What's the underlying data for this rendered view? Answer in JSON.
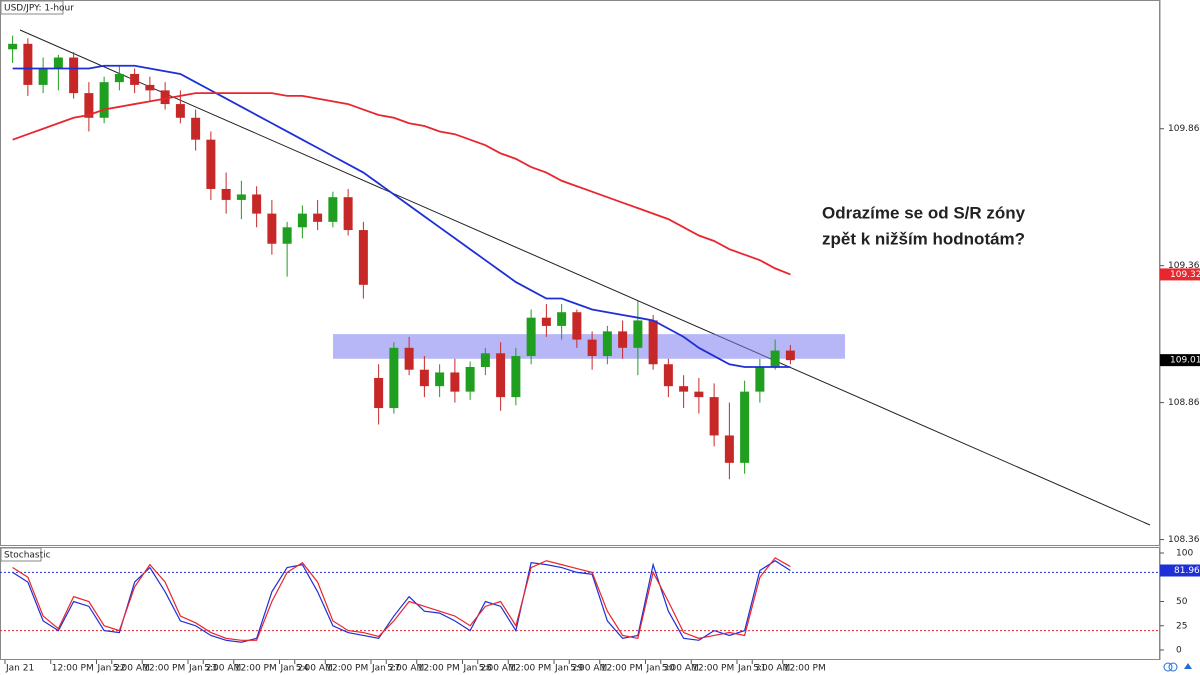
{
  "chart_data": [
    {
      "type": "candlestick",
      "title": "USD/JPY: 1-hour",
      "categories": [
        "Jan 21",
        null,
        null,
        "12:00 PM",
        null,
        null,
        "Jan 22",
        "5:00 AM",
        null,
        "12:00 PM",
        null,
        null,
        "Jan 23",
        "5:00 AM",
        null,
        "12:00 PM",
        null,
        null,
        "Jan 24",
        "5:00 AM",
        null,
        "12:00 PM",
        null,
        null,
        "Jan 27",
        "5:00 AM",
        null,
        "12:00 PM",
        null,
        null,
        "Jan 28",
        "5:00 AM",
        null,
        "12:00 PM",
        null,
        null,
        "Jan 29",
        "5:00 AM",
        null,
        "12:00 PM",
        null,
        null,
        "Jan 30",
        "5:00 AM",
        null,
        "12:00 PM",
        null,
        null,
        "Jan 31",
        "5:00 AM",
        null,
        "12:00 PM"
      ],
      "open": [
        110.15,
        110.17,
        110.02,
        110.08,
        110.12,
        109.99,
        109.9,
        110.03,
        110.06,
        110.02,
        110.0,
        109.95,
        109.9,
        109.82,
        109.64,
        109.6,
        109.62,
        109.55,
        109.44,
        109.5,
        109.55,
        109.52,
        109.61,
        109.49,
        108.95,
        108.84,
        109.06,
        108.98,
        108.92,
        108.97,
        108.9,
        108.99,
        109.04,
        108.88,
        109.03,
        109.17,
        109.14,
        109.19,
        109.09,
        109.03,
        109.12,
        109.06,
        109.16,
        109.0,
        108.92,
        108.9,
        108.88,
        108.74,
        108.64,
        108.9,
        108.99,
        109.05
      ],
      "high": [
        110.2,
        110.19,
        110.12,
        110.13,
        110.14,
        110.03,
        110.05,
        110.09,
        110.08,
        110.05,
        110.03,
        110.0,
        109.93,
        109.85,
        109.7,
        109.67,
        109.65,
        109.6,
        109.52,
        109.58,
        109.6,
        109.63,
        109.64,
        109.52,
        109.0,
        109.08,
        109.1,
        109.03,
        109.0,
        109.02,
        109.01,
        109.06,
        109.08,
        109.06,
        109.2,
        109.22,
        109.22,
        109.2,
        109.12,
        109.14,
        109.16,
        109.23,
        109.18,
        109.02,
        108.96,
        108.95,
        108.93,
        108.86,
        108.94,
        109.02,
        109.09,
        109.07
      ],
      "low": [
        110.1,
        109.98,
        109.99,
        110.0,
        109.97,
        109.85,
        109.88,
        110.0,
        109.99,
        109.96,
        109.93,
        109.88,
        109.78,
        109.6,
        109.55,
        109.53,
        109.5,
        109.4,
        109.32,
        109.46,
        109.49,
        109.5,
        109.47,
        109.24,
        108.78,
        108.82,
        108.96,
        108.88,
        108.88,
        108.86,
        108.87,
        108.96,
        108.83,
        108.85,
        109.0,
        109.1,
        109.09,
        109.06,
        108.98,
        109.0,
        109.02,
        108.96,
        108.98,
        108.88,
        108.84,
        108.82,
        108.7,
        108.58,
        108.6,
        108.86,
        108.98,
        109.0
      ],
      "close": [
        110.17,
        110.02,
        110.08,
        110.12,
        109.99,
        109.9,
        110.03,
        110.06,
        110.02,
        110.0,
        109.95,
        109.9,
        109.82,
        109.64,
        109.6,
        109.62,
        109.55,
        109.44,
        109.5,
        109.55,
        109.52,
        109.61,
        109.49,
        109.29,
        108.84,
        109.06,
        108.98,
        108.92,
        108.97,
        108.9,
        108.99,
        109.04,
        108.88,
        109.03,
        109.17,
        109.14,
        109.19,
        109.09,
        109.03,
        109.12,
        109.06,
        109.16,
        109.0,
        108.92,
        108.9,
        108.88,
        108.74,
        108.64,
        108.9,
        108.99,
        109.05,
        109.015
      ],
      "up_color": "#1f9e1f",
      "down_color": "#c62828",
      "lines": [
        {
          "color": "#1f2fd6",
          "values": [
            110.08,
            110.08,
            110.08,
            110.08,
            110.08,
            110.08,
            110.09,
            110.09,
            110.09,
            110.08,
            110.07,
            110.06,
            110.03,
            110.0,
            109.97,
            109.94,
            109.91,
            109.88,
            109.85,
            109.82,
            109.79,
            109.76,
            109.73,
            109.7,
            109.66,
            109.62,
            109.58,
            109.54,
            109.5,
            109.46,
            109.42,
            109.38,
            109.34,
            109.3,
            109.27,
            109.24,
            109.24,
            109.22,
            109.2,
            109.19,
            109.18,
            109.17,
            109.16,
            109.13,
            109.1,
            109.06,
            109.03,
            109.0,
            108.99,
            108.99,
            108.99,
            108.99
          ]
        },
        {
          "color": "#e8262d",
          "values": [
            109.82,
            109.84,
            109.86,
            109.88,
            109.9,
            109.91,
            109.93,
            109.94,
            109.95,
            109.96,
            109.97,
            109.98,
            109.99,
            109.99,
            109.99,
            109.99,
            109.99,
            109.99,
            109.98,
            109.98,
            109.97,
            109.96,
            109.95,
            109.93,
            109.91,
            109.9,
            109.88,
            109.87,
            109.85,
            109.84,
            109.82,
            109.8,
            109.77,
            109.75,
            109.72,
            109.7,
            109.67,
            109.65,
            109.63,
            109.61,
            109.59,
            109.57,
            109.55,
            109.53,
            109.5,
            109.47,
            109.45,
            109.42,
            109.4,
            109.38,
            109.35,
            109.328
          ]
        }
      ],
      "price_labels": [
        {
          "value": 109.328,
          "color": "#e8262d"
        },
        {
          "value": 109.015,
          "color": "#000000"
        }
      ],
      "zone": [
        109.02,
        109.11
      ],
      "zone_color": "#7b7bf0",
      "annotation": [
        "Odrazíme se od S/R zóny",
        "zpět k nižším hodnotám?"
      ],
      "ylim": [
        108.34,
        110.33
      ],
      "yticks": [
        {
          "value": 109.86,
          "label": "109.860"
        },
        {
          "value": 109.36,
          "label": "109.360"
        },
        {
          "value": 108.86,
          "label": "108.860"
        },
        {
          "value": 108.36,
          "label": "108.360"
        }
      ]
    },
    {
      "type": "stochastic",
      "title": "Stochastic",
      "series": [
        {
          "color": "#1f2fd6",
          "values": [
            80,
            70,
            30,
            20,
            50,
            45,
            20,
            18,
            70,
            85,
            60,
            30,
            25,
            15,
            10,
            8,
            12,
            60,
            85,
            88,
            60,
            25,
            18,
            15,
            12,
            35,
            55,
            40,
            38,
            30,
            20,
            50,
            45,
            20,
            90,
            88,
            85,
            80,
            78,
            30,
            12,
            15,
            88,
            40,
            12,
            10,
            20,
            15,
            20,
            82,
            92,
            81.96
          ]
        },
        {
          "color": "#e8262d",
          "values": [
            85,
            75,
            35,
            22,
            55,
            50,
            25,
            20,
            65,
            88,
            70,
            35,
            28,
            18,
            12,
            10,
            10,
            50,
            80,
            90,
            70,
            30,
            20,
            18,
            14,
            30,
            50,
            45,
            40,
            35,
            25,
            45,
            50,
            25,
            85,
            92,
            88,
            84,
            80,
            40,
            15,
            12,
            80,
            50,
            18,
            12,
            15,
            18,
            15,
            75,
            95,
            86
          ]
        }
      ],
      "levels": [
        {
          "value": 80,
          "color": "#1f2fd6"
        },
        {
          "value": 20,
          "color": "#e8262d"
        }
      ],
      "ylim": [
        0,
        100
      ],
      "yticks": [
        100,
        50,
        25,
        0
      ]
    }
  ]
}
